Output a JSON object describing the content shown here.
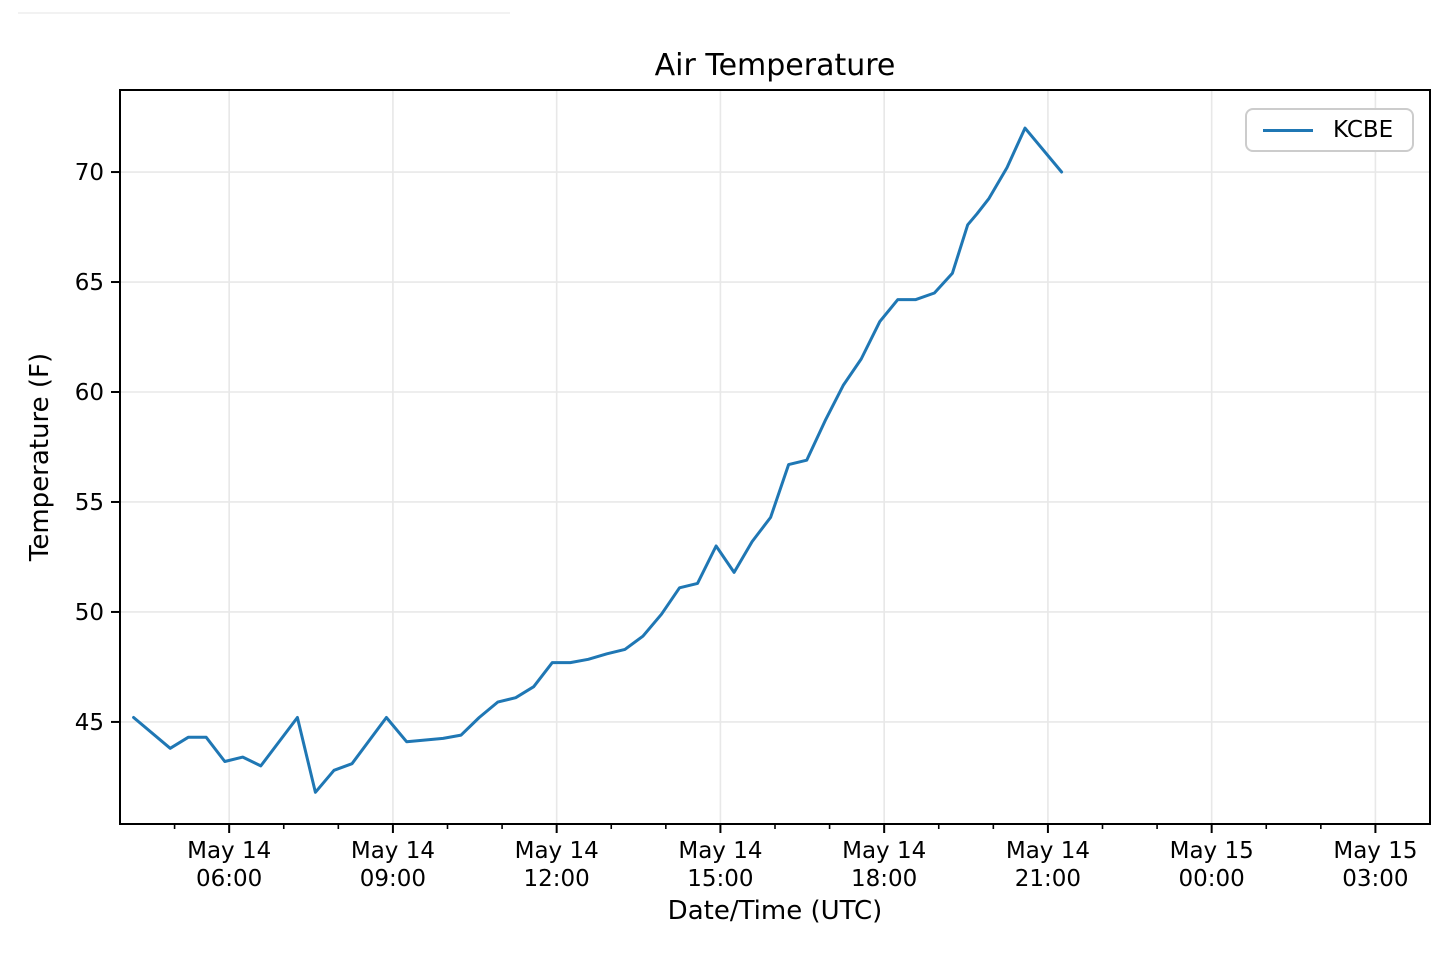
{
  "colors": {
    "line": "#1f77b4",
    "grid": "#e8e8e8",
    "spine": "#000000",
    "legend_border": "#cccccc",
    "background": "#ffffff"
  },
  "chart_data": {
    "type": "line",
    "title": "Air Temperature",
    "xlabel": "Date/Time (UTC)",
    "ylabel": "Temperature (F)",
    "grid": true,
    "legend": {
      "position": "upper right",
      "entries": [
        "KCBE"
      ]
    },
    "x_axis": {
      "unit": "hours UTC since May 14 00:00",
      "lim": [
        4,
        28
      ],
      "major_ticks": [
        {
          "hour": 6,
          "line1": "May 14",
          "line2": "06:00"
        },
        {
          "hour": 9,
          "line1": "May 14",
          "line2": "09:00"
        },
        {
          "hour": 12,
          "line1": "May 14",
          "line2": "12:00"
        },
        {
          "hour": 15,
          "line1": "May 14",
          "line2": "15:00"
        },
        {
          "hour": 18,
          "line1": "May 14",
          "line2": "18:00"
        },
        {
          "hour": 21,
          "line1": "May 14",
          "line2": "21:00"
        },
        {
          "hour": 24,
          "line1": "May 15",
          "line2": "00:00"
        },
        {
          "hour": 27,
          "line1": "May 15",
          "line2": "03:00"
        }
      ],
      "minor_tick_hours": [
        5,
        7,
        8,
        10,
        11,
        13,
        14,
        16,
        17,
        19,
        20,
        22,
        23,
        25,
        26
      ]
    },
    "y_axis": {
      "lim": [
        40.36,
        73.73
      ],
      "major_ticks": [
        45,
        50,
        55,
        60,
        65,
        70
      ]
    },
    "series": [
      {
        "name": "KCBE",
        "color": "#1f77b4",
        "points": [
          [
            4.25,
            45.2
          ],
          [
            4.92,
            43.8
          ],
          [
            5.25,
            44.3
          ],
          [
            5.58,
            44.3
          ],
          [
            5.92,
            43.2
          ],
          [
            6.25,
            43.4
          ],
          [
            6.58,
            43.0
          ],
          [
            7.25,
            45.2
          ],
          [
            7.58,
            41.8
          ],
          [
            7.92,
            42.8
          ],
          [
            8.25,
            43.1
          ],
          [
            8.88,
            45.2
          ],
          [
            9.25,
            44.1
          ],
          [
            9.92,
            44.25
          ],
          [
            10.25,
            44.4
          ],
          [
            10.58,
            45.2
          ],
          [
            10.92,
            45.9
          ],
          [
            11.25,
            46.1
          ],
          [
            11.58,
            46.6
          ],
          [
            11.92,
            47.7
          ],
          [
            12.25,
            47.7
          ],
          [
            12.58,
            47.85
          ],
          [
            12.92,
            48.1
          ],
          [
            13.25,
            48.3
          ],
          [
            13.58,
            48.9
          ],
          [
            13.92,
            49.9
          ],
          [
            14.25,
            51.1
          ],
          [
            14.58,
            51.3
          ],
          [
            14.92,
            53.0
          ],
          [
            15.25,
            51.8
          ],
          [
            15.58,
            53.2
          ],
          [
            15.92,
            54.3
          ],
          [
            16.25,
            56.7
          ],
          [
            16.58,
            56.9
          ],
          [
            16.92,
            58.7
          ],
          [
            17.25,
            60.3
          ],
          [
            17.58,
            61.5
          ],
          [
            17.92,
            63.2
          ],
          [
            18.25,
            64.2
          ],
          [
            18.58,
            64.2
          ],
          [
            18.92,
            64.5
          ],
          [
            19.25,
            65.4
          ],
          [
            19.53,
            67.6
          ],
          [
            19.7,
            68.1
          ],
          [
            19.92,
            68.8
          ],
          [
            20.25,
            70.2
          ],
          [
            20.58,
            72.0
          ],
          [
            21.25,
            70.0
          ]
        ]
      }
    ]
  }
}
